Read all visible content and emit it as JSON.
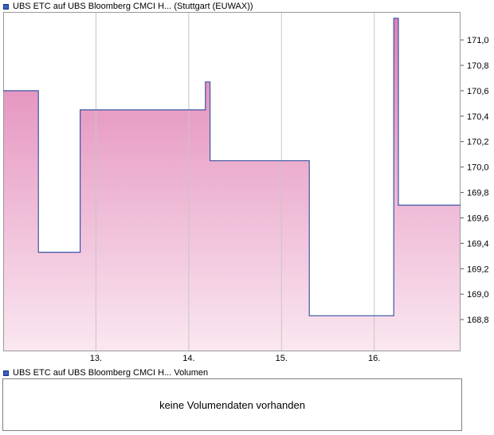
{
  "accent": {
    "legend_icon_color": "#3A62C4"
  },
  "price_chart": {
    "title": "UBS ETC auf UBS Bloomberg CMCI H... (Stuttgart (EUWAX))"
  },
  "volume_panel": {
    "title": "UBS ETC auf UBS Bloomberg CMCI H... Volumen",
    "message": "keine Volumendaten vorhanden"
  },
  "chart_data": {
    "type": "line",
    "step": true,
    "title": "UBS ETC auf UBS Bloomberg CMCI H... (Stuttgart (EUWAX))",
    "xlabel": "",
    "ylabel": "",
    "x_unit": "day of month",
    "xlim": [
      12.0,
      16.93
    ],
    "ylim": [
      168.55,
      171.22
    ],
    "grid": "vertical",
    "legend_position": "none",
    "segments": [
      {
        "from": 12.0,
        "to": 12.38,
        "value": 170.6
      },
      {
        "from": 12.38,
        "to": 12.83,
        "value": 169.33
      },
      {
        "from": 12.83,
        "to": 14.18,
        "value": 170.45
      },
      {
        "from": 14.18,
        "to": 14.23,
        "value": 170.67
      },
      {
        "from": 14.23,
        "to": 15.3,
        "value": 170.05
      },
      {
        "from": 15.3,
        "to": 16.21,
        "value": 168.83
      },
      {
        "from": 16.21,
        "to": 16.26,
        "value": 171.17
      },
      {
        "from": 16.26,
        "to": 16.93,
        "value": 169.7
      }
    ],
    "xticks": [
      {
        "pos": 13,
        "label": "13."
      },
      {
        "pos": 14,
        "label": "14."
      },
      {
        "pos": 15,
        "label": "15."
      },
      {
        "pos": 16,
        "label": "16."
      }
    ],
    "yticks": [
      {
        "pos": 171.0,
        "label": "171,0"
      },
      {
        "pos": 170.8,
        "label": "170,8"
      },
      {
        "pos": 170.6,
        "label": "170,6"
      },
      {
        "pos": 170.4,
        "label": "170,4"
      },
      {
        "pos": 170.2,
        "label": "170,2"
      },
      {
        "pos": 170.0,
        "label": "170,0"
      },
      {
        "pos": 169.8,
        "label": "169,8"
      },
      {
        "pos": 169.6,
        "label": "169,6"
      },
      {
        "pos": 169.4,
        "label": "169,4"
      },
      {
        "pos": 169.2,
        "label": "169,2"
      },
      {
        "pos": 169.0,
        "label": "169,0"
      },
      {
        "pos": 168.8,
        "label": "168,8"
      }
    ],
    "line_color": "#3C55A5",
    "fill_top_color": "#E07FB2",
    "fill_bottom_color": "#FAE7F1",
    "grid_color": "#C6C6C6",
    "border_color": "#999999",
    "tick_color": "#555555"
  }
}
